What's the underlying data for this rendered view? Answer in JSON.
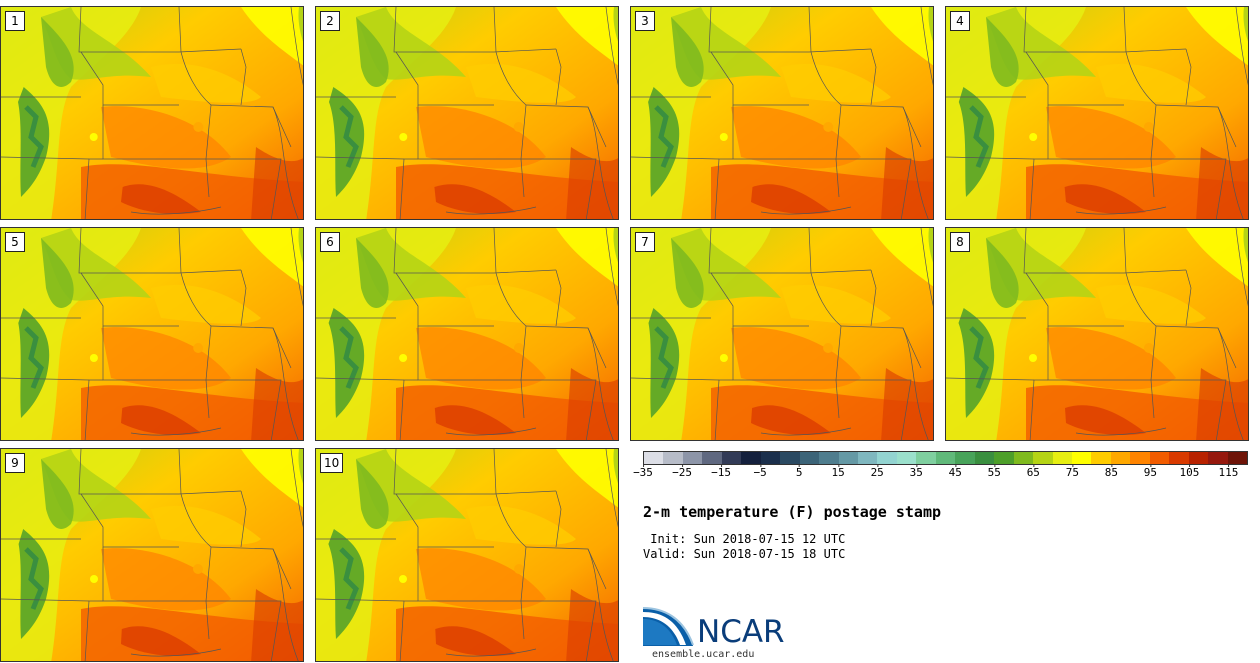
{
  "panels": [
    {
      "label": "1"
    },
    {
      "label": "2"
    },
    {
      "label": "3"
    },
    {
      "label": "4"
    },
    {
      "label": "5"
    },
    {
      "label": "6"
    },
    {
      "label": "7"
    },
    {
      "label": "8"
    },
    {
      "label": "9"
    },
    {
      "label": "10"
    }
  ],
  "colorbar": {
    "colors": [
      "#dcdee6",
      "#b7bcc8",
      "#8d95a8",
      "#5f6880",
      "#323b57",
      "#14203d",
      "#1b2f4c",
      "#2b4a62",
      "#3c6478",
      "#4f7d8e",
      "#6599a5",
      "#7fb7bf",
      "#93d4d1",
      "#9be0cc",
      "#7fcf9f",
      "#60b97a",
      "#48a35a",
      "#3a8f3f",
      "#4d9f2a",
      "#7fba1e",
      "#b5d415",
      "#e6ee12",
      "#ffff00",
      "#ffcc00",
      "#ffa800",
      "#ff8400",
      "#f25c00",
      "#d93a00",
      "#b82200",
      "#96180d",
      "#6e1408"
    ],
    "tick_labels": [
      "−35",
      "−25",
      "−15",
      "−5",
      "5",
      "15",
      "25",
      "35",
      "45",
      "55",
      "65",
      "75",
      "85",
      "95",
      "105",
      "115"
    ]
  },
  "title": "2-m temperature (F) postage stamp",
  "init_line": " Init: Sun 2018-07-15 12 UTC",
  "valid_line": "Valid: Sun 2018-07-15 18 UTC",
  "logo": {
    "text": "NCAR",
    "url": "ensemble.ucar.edu",
    "colors": {
      "blue": "#0a3d7a",
      "light": "#7fb7d9"
    }
  }
}
